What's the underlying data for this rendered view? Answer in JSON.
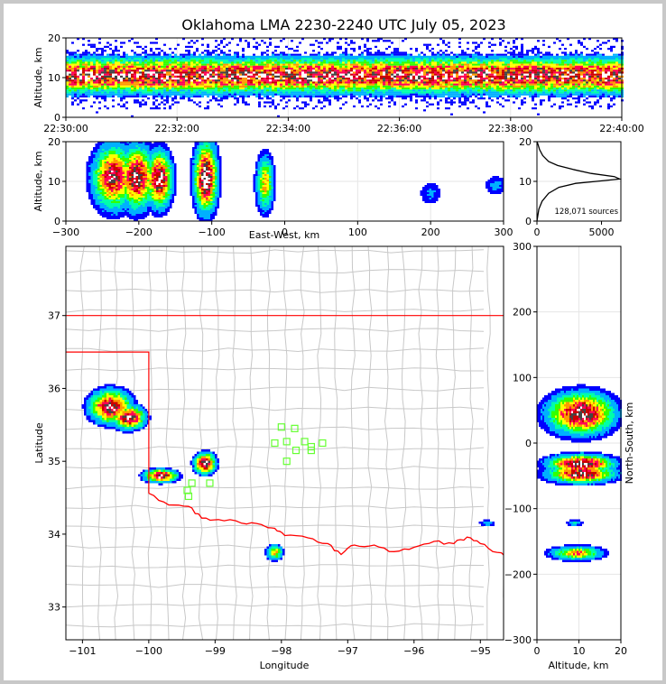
{
  "figure": {
    "title": "Oklahoma LMA 2230-2240 UTC July 05, 2023"
  },
  "colors": {
    "density_scale": [
      "#0000ff",
      "#00b0ff",
      "#00ffaa",
      "#33ff00",
      "#ffff00",
      "#ff9900",
      "#ff0055",
      "#cc0000",
      "#444444",
      "#ffffff"
    ],
    "state_border": "#ff0000",
    "county_lines": "#c8c8c8",
    "station_marker": "#66ff33",
    "histogram_line": "#000000"
  },
  "chart_data": [
    {
      "id": "time-altitude",
      "type": "heatmap",
      "ylabel": "Altitude, km",
      "xlabel": "",
      "xlim": [
        "22:30:00",
        "22:40:00"
      ],
      "ylim": [
        0,
        20
      ],
      "xticks": [
        "22:30:00",
        "22:32:00",
        "22:34:00",
        "22:36:00",
        "22:38:00",
        "22:40:00"
      ],
      "yticks": [
        "0",
        "10",
        "20"
      ],
      "grid": true,
      "density_profile": {
        "core_altitude_km": 10.5,
        "core_spread_km": 2.5,
        "band_range_km": [
          2,
          20
        ]
      }
    },
    {
      "id": "ew-altitude",
      "type": "heatmap",
      "xlabel": "East-West, km",
      "ylabel": "Altitude, km",
      "xlim": [
        -300,
        300
      ],
      "ylim": [
        0,
        20
      ],
      "xticks": [
        "−300",
        "−200",
        "−100",
        "0",
        "100",
        "200",
        "300"
      ],
      "yticks": [
        "0",
        "10",
        "20"
      ],
      "grid": true,
      "clusters": [
        {
          "x_km": -235,
          "alt_km": 11,
          "sx": 16,
          "sy": 4.5,
          "peak": 0.85
        },
        {
          "x_km": -203,
          "alt_km": 11,
          "sx": 14,
          "sy": 4.5,
          "peak": 0.9
        },
        {
          "x_km": -172,
          "alt_km": 10.5,
          "sx": 10,
          "sy": 4,
          "peak": 0.95
        },
        {
          "x_km": -108,
          "alt_km": 11,
          "sx": 9,
          "sy": 5,
          "peak": 1.0
        },
        {
          "x_km": -27,
          "alt_km": 9.5,
          "sx": 7,
          "sy": 4,
          "peak": 0.55
        },
        {
          "x_km": 200,
          "alt_km": 7,
          "sx": 10,
          "sy": 2,
          "peak": 0.12
        },
        {
          "x_km": 290,
          "alt_km": 9,
          "sx": 10,
          "sy": 1.5,
          "peak": 0.15
        }
      ]
    },
    {
      "id": "altitude-histogram",
      "type": "line",
      "xlim": [
        0,
        6500
      ],
      "ylim": [
        0,
        20
      ],
      "xticks": [
        "0",
        "5000"
      ],
      "yticks": [
        "0",
        "10",
        "20"
      ],
      "annotation": "128,071 sources",
      "series": [
        {
          "x": [
            0,
            150,
            400,
            900,
            1700,
            3000,
            4600,
            6400,
            6000,
            4200,
            2800,
            1600,
            900,
            450,
            200,
            60,
            0
          ],
          "y": [
            0,
            3,
            5,
            7,
            8.5,
            9.5,
            10,
            10.6,
            11.2,
            12,
            13,
            14,
            15,
            16.5,
            18,
            19.5,
            20
          ]
        }
      ]
    },
    {
      "id": "plan-view",
      "type": "heatmap",
      "xlabel": "Longitude",
      "ylabel": "Latitude",
      "xlim": [
        -101.25,
        -94.65
      ],
      "ylim": [
        32.55,
        37.95
      ],
      "xticks": [
        "−101",
        "−100",
        "−99",
        "−98",
        "−97",
        "−96",
        "−95"
      ],
      "yticks": [
        "33",
        "34",
        "35",
        "36",
        "37"
      ],
      "clusters": [
        {
          "lon": -100.58,
          "lat": 35.75,
          "sx": 0.18,
          "sy": 0.13,
          "peak": 0.9
        },
        {
          "lon": -100.3,
          "lat": 35.6,
          "sx": 0.14,
          "sy": 0.09,
          "peak": 0.95
        },
        {
          "lon": -99.82,
          "lat": 34.8,
          "sx": 0.14,
          "sy": 0.05,
          "peak": 0.95
        },
        {
          "lon": -99.15,
          "lat": 34.97,
          "sx": 0.09,
          "sy": 0.08,
          "peak": 1.0
        },
        {
          "lon": -98.1,
          "lat": 33.75,
          "sx": 0.07,
          "sy": 0.06,
          "peak": 0.55
        },
        {
          "lon": -94.9,
          "lat": 34.15,
          "sx": 0.08,
          "sy": 0.03,
          "peak": 0.18
        }
      ],
      "stations": [
        {
          "lon": -98.0,
          "lat": 35.47
        },
        {
          "lon": -97.8,
          "lat": 35.45
        },
        {
          "lon": -97.92,
          "lat": 35.27
        },
        {
          "lon": -98.1,
          "lat": 35.25
        },
        {
          "lon": -97.65,
          "lat": 35.27
        },
        {
          "lon": -97.55,
          "lat": 35.2
        },
        {
          "lon": -97.38,
          "lat": 35.25
        },
        {
          "lon": -97.78,
          "lat": 35.15
        },
        {
          "lon": -97.55,
          "lat": 35.15
        },
        {
          "lon": -97.92,
          "lat": 35.0
        },
        {
          "lon": -99.35,
          "lat": 34.7
        },
        {
          "lon": -99.42,
          "lat": 34.6
        },
        {
          "lon": -99.4,
          "lat": 34.52
        },
        {
          "lon": -99.08,
          "lat": 34.7
        }
      ]
    },
    {
      "id": "altitude-ns",
      "type": "heatmap",
      "xlabel": "Altitude, km",
      "ylabel": "North-South, km",
      "xlim": [
        0,
        20
      ],
      "ylim": [
        -300,
        300
      ],
      "xticks": [
        "0",
        "10",
        "20"
      ],
      "yticks": [
        "−300",
        "−200",
        "−100",
        "0",
        "100",
        "200",
        "300"
      ],
      "grid": true,
      "clusters": [
        {
          "alt_km": 10.5,
          "y_km": 45,
          "sx": 4.5,
          "sy": 18,
          "peak": 0.95
        },
        {
          "alt_km": 10.5,
          "y_km": -32,
          "sx": 4.5,
          "sy": 8,
          "peak": 0.95
        },
        {
          "alt_km": 10.5,
          "y_km": -47,
          "sx": 4.5,
          "sy": 8,
          "peak": 0.9
        },
        {
          "alt_km": 9,
          "y_km": -122,
          "sx": 1.2,
          "sy": 3,
          "peak": 0.2
        },
        {
          "alt_km": 9.5,
          "y_km": -168,
          "sx": 3.5,
          "sy": 6,
          "peak": 0.6
        }
      ]
    }
  ]
}
